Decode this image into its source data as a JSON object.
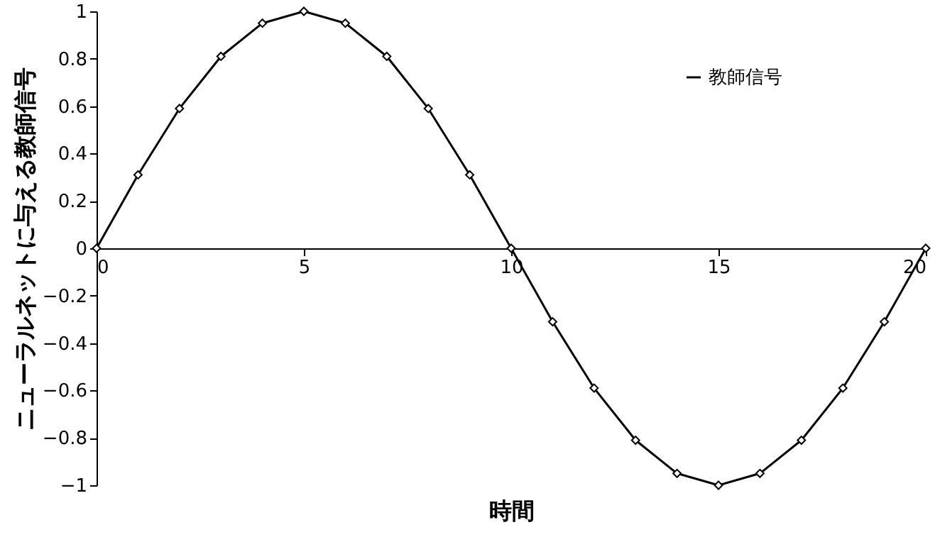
{
  "chart_data": {
    "type": "line",
    "xlabel": "時間",
    "ylabel": "ニューラルネットに与える教師信号",
    "x": [
      0,
      1,
      2,
      3,
      4,
      5,
      6,
      7,
      8,
      9,
      10,
      11,
      12,
      13,
      14,
      15,
      16,
      17,
      18,
      19,
      20
    ],
    "series": [
      {
        "name": "教師信号",
        "color": "#000000",
        "values": [
          0,
          0.31,
          0.59,
          0.81,
          0.95,
          1,
          0.95,
          0.81,
          0.59,
          0.31,
          0,
          -0.31,
          -0.59,
          -0.81,
          -0.95,
          -1,
          -0.95,
          -0.81,
          -0.59,
          -0.31,
          0
        ]
      }
    ],
    "xlim": [
      0,
      20
    ],
    "xticks": [
      0,
      5,
      10,
      15,
      20
    ],
    "ylim": [
      -1,
      1
    ],
    "yticks": [
      -1,
      -0.8,
      -0.6,
      -0.4,
      -0.2,
      0,
      0.2,
      0.4,
      0.6,
      0.8,
      1
    ],
    "grid": false,
    "legend": "top right",
    "marker": "diamond",
    "line_style": "solid"
  }
}
